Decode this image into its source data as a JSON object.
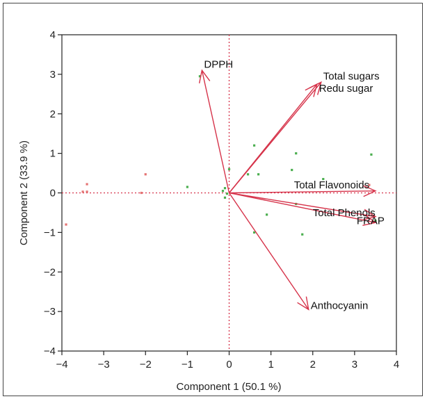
{
  "chart_data": {
    "type": "biplot",
    "xlabel": "Component 1  (50.1 %)",
    "ylabel": "Component 2  (33.9 %)",
    "xlim": [
      -4,
      4
    ],
    "ylim": [
      -4,
      4
    ],
    "xticks": [
      -4,
      -3,
      -2,
      -1,
      0,
      1,
      2,
      3,
      4
    ],
    "yticks": [
      -4,
      -3,
      -2,
      -1,
      0,
      1,
      2,
      3,
      4
    ],
    "reference_lines": {
      "x": 0,
      "y": 0,
      "style": "dotted"
    },
    "vector_color": "#d6334a",
    "vectors": [
      {
        "label": "DPPH",
        "x": -0.65,
        "y": 3.1,
        "label_dx": 0.05,
        "label_dy": 0.15
      },
      {
        "label": "Total sugars",
        "x": 2.2,
        "y": 2.8,
        "label_dx": 0.05,
        "label_dy": 0.15
      },
      {
        "label": "Redu sugar",
        "x": 2.1,
        "y": 2.75,
        "label_dx": 0.05,
        "label_dy": -0.1
      },
      {
        "label": "Total Flavonoids",
        "x": 3.5,
        "y": 0.05,
        "label_dx": -1.95,
        "label_dy": 0.15
      },
      {
        "label": "Total Phenols",
        "x": 3.5,
        "y": -0.6,
        "label_dx": -1.5,
        "label_dy": 0.1
      },
      {
        "label": "FRAP",
        "x": 3.5,
        "y": -0.75,
        "label_dx": -0.45,
        "label_dy": 0.05
      },
      {
        "label": "Anthocyanin",
        "x": 1.9,
        "y": -2.95,
        "label_dx": 0.05,
        "label_dy": 0.1
      }
    ],
    "point_series": [
      {
        "color": "#4caf50",
        "points": [
          [
            -0.7,
            2.95
          ],
          [
            0.6,
            1.2
          ],
          [
            1.6,
            1.0
          ],
          [
            3.4,
            0.97
          ],
          [
            0.0,
            0.6
          ],
          [
            1.5,
            0.58
          ],
          [
            0.45,
            0.47
          ],
          [
            0.7,
            0.47
          ],
          [
            2.25,
            0.35
          ],
          [
            -1.0,
            0.15
          ],
          [
            -0.1,
            0.12
          ],
          [
            -0.15,
            0.05
          ],
          [
            -0.05,
            -0.02
          ],
          [
            -0.1,
            -0.12
          ],
          [
            1.6,
            -0.28
          ],
          [
            0.9,
            -0.55
          ],
          [
            0.6,
            -1.0
          ],
          [
            1.75,
            -1.05
          ],
          [
            3.5,
            -0.7
          ]
        ]
      },
      {
        "color": "#e57373",
        "points": [
          [
            -2.0,
            0.47
          ],
          [
            -3.4,
            0.22
          ],
          [
            -3.4,
            0.03
          ],
          [
            -3.5,
            0.03
          ],
          [
            -2.1,
            0.0
          ],
          [
            3.35,
            0.2
          ],
          [
            -3.9,
            -0.8
          ]
        ]
      }
    ]
  }
}
